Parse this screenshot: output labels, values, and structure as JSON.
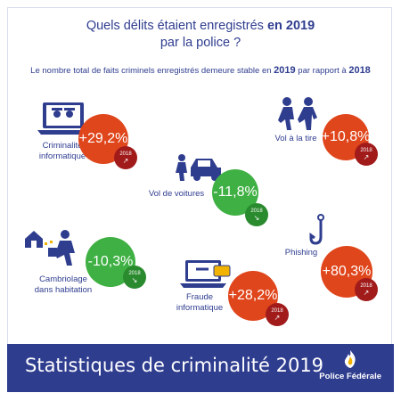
{
  "header": {
    "title_part1": "Quels délits étaient enregistrés ",
    "title_year": "en 2019",
    "title_line2": "par la police ?",
    "subtitle_part1": "Le nombre total de faits criminels enregistrés demeure stable en ",
    "subtitle_year1": "2019",
    "subtitle_part2": " par rapport à ",
    "subtitle_year2": "2018"
  },
  "items": [
    {
      "label_line1": "Criminalité",
      "label_line2": "informatique",
      "value": "+29,2%",
      "badge": "2018",
      "color": "#e0461c",
      "icon": "laptop-eyes-icon"
    },
    {
      "label_line1": "Vol à la tire",
      "label_line2": "",
      "value": "+10,8%",
      "badge": "2018",
      "color": "#e0461c",
      "icon": "pickpocket-icon"
    },
    {
      "label_line1": "Vol de voitures",
      "label_line2": "",
      "value": "-11,8%",
      "badge": "2018",
      "color": "#3fb043",
      "icon": "car-thief-icon"
    },
    {
      "label_line1": "Cambriolage",
      "label_line2": "dans habitation",
      "value": "-10,3%",
      "badge": "2018",
      "color": "#3fb043",
      "icon": "burglar-icon"
    },
    {
      "label_line1": "Phishing",
      "label_line2": "",
      "value": "+80,3%",
      "badge": "2018",
      "color": "#e0461c",
      "icon": "fish-hook-icon"
    },
    {
      "label_line1": "Fraude",
      "label_line2": "informatique",
      "value": "+28,2%",
      "badge": "2018",
      "color": "#e0461c",
      "icon": "laptop-card-icon"
    }
  ],
  "footer": {
    "title": "Statistiques de criminalité 2019",
    "logo_text": "Police Fédérale",
    "background": "#2f3d8f"
  }
}
